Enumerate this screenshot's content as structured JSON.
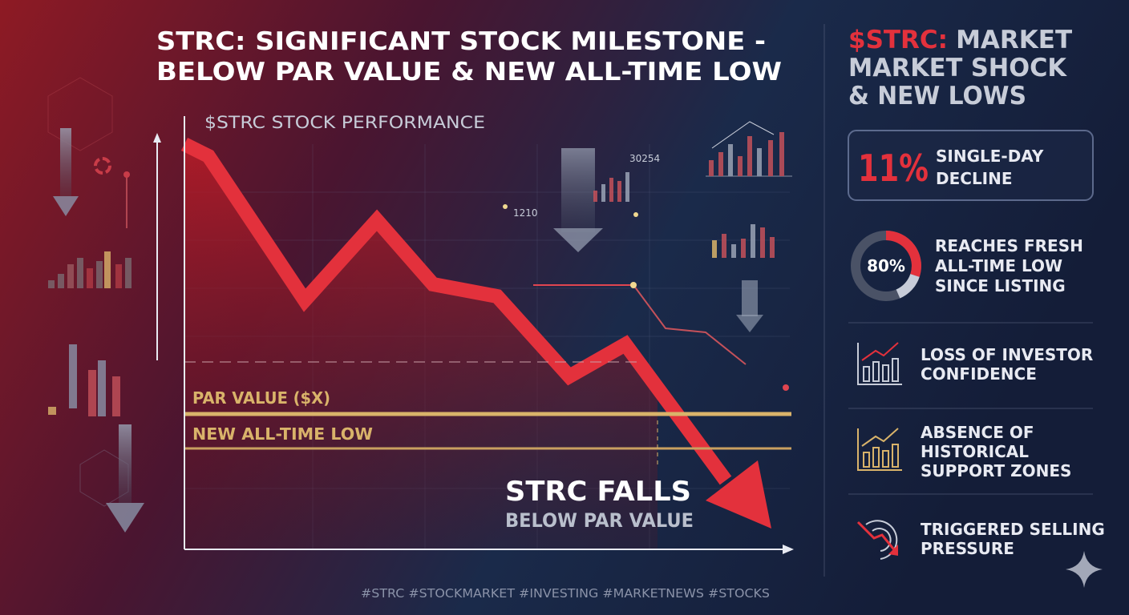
{
  "header": {
    "title_lines": [
      "STRC: SIGNIFICANT STOCK MILESTONE -",
      "BELOW PAR VALUE & NEW ALL-TIME LOW"
    ]
  },
  "chart": {
    "label": "$STRC STOCK PERFORMANCE",
    "par_label": "PAR VALUE ($X)",
    "low_label": "NEW ALL-TIME LOW",
    "callout": [
      "STRC FALLS",
      "BELOW PAR VALUE"
    ],
    "annotations": [
      "1210",
      "30254"
    ]
  },
  "sidebar": {
    "title_accent": "$STRC:",
    "title_lines": [
      "MARKET",
      "MARKET SHOCK",
      "& NEW LOWS"
    ],
    "stat": {
      "value": "11%",
      "text": [
        "SINGLE-DAY",
        "DECLINE"
      ]
    },
    "ring": {
      "value": "80%",
      "text": [
        "REACHES FRESH",
        "ALL-TIME LOW",
        "SINCE LISTING"
      ]
    },
    "items": [
      {
        "text": [
          "LOSS OF INVESTOR",
          "CONFIDENCE"
        ]
      },
      {
        "text": [
          "ABSENCE OF",
          "HISTORICAL",
          "SUPPORT ZONES"
        ]
      },
      {
        "text": [
          "TRIGGERED SELLING",
          "PRESSURE"
        ]
      }
    ]
  },
  "footer": {
    "hashtags": "#STRC #STOCKMARKET #INVESTING #MARKETNEWS #STOCKS"
  }
}
